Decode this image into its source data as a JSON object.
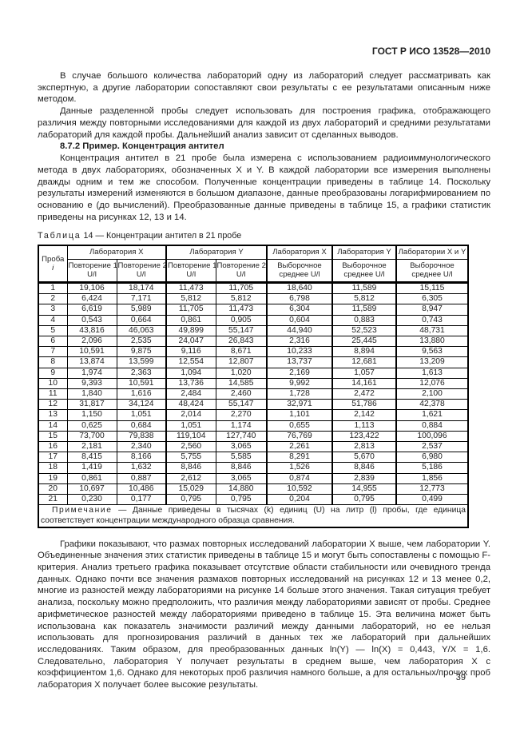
{
  "doc_header": {
    "standard_number": "ГОСТ Р ИСО 13528—2010"
  },
  "body": {
    "para1": "В случае большого количества лабораторий одну из лабораторий следует рассматривать как экспертную, а другие лаборатории сопоставляют свои результаты с ее результатами описанным ниже методом.",
    "para2": "Данные разделенной пробы следует использовать для построения графика, отображающего различия между повторными исследованиями для каждой из двух лабораторий и средними результатами лабораторий для каждой пробы. Дальнейший анализ зависит от сделанных выводов.",
    "section_heading": "8.7.2 Пример. Концентрация антител",
    "para3": "Концентрация антител в 21 пробе была измерена с использованием радиоиммунологического метода в двух лабораториях, обозначенных X и Y. В каждой лаборатории все измерения выполнены дважды одним и тем же способом. Полученные концентрации приведены в таблице 14. Поскольку результаты измерений изменяются в большом диапазоне, данные преобразованы логарифмированием по основанию e (до вычислений). Преобразованные данные приведены в таблице 15, а графики статистик приведены на рисунках 12, 13 и 14.",
    "para4": "Графики показывают, что размах повторных исследований лаборатории X выше, чем лаборатории Y. Объединенные значения этих статистик приведены в таблице 15 и могут быть сопоставлены с помощью F-критерия. Анализ третьего графика показывает отсутствие области стабильности или очевидного тренда данных. Однако почти все значения размахов повторных исследований на рисунках 12 и 13 менее 0,2, многие из разностей между лабораториями на рисунке 14 больше этого значения. Такая ситуация требует анализа, поскольку можно предположить, что различия между лабораториями зависят от пробы. Среднее арифметическое разностей между лабораториями приведено в таблице 15. Эта величина может быть использована как показатель значимости различий между данными лабораторий, но ее нельзя использовать для прогнозирования различий в данных тех же лабораторий при дальнейших исследованиях. Таким образом, для преобразованных данных ln(Y) — ln(X) = 0,443, Y/X = 1,6. Следовательно, лаборатория Y получает результаты в среднем выше, чем лаборатория X с коэффициентом 1,6. Однако для некоторых проб различия намного больше, а для остальных/прочих проб лаборатория X получает более высокие результаты."
  },
  "table": {
    "caption_word": "Таблица",
    "caption_rest": "14 — Концентрации антител в 21 пробе",
    "head": {
      "sample_label": "Проба",
      "sample_index": "i",
      "group_x": "Лаборатория X",
      "group_y": "Лаборатория Y",
      "mean_x": "Лаборатория X",
      "mean_y": "Лаборатория Y",
      "mean_xy": "Лаборатории X и Y",
      "rep1": "Повторение 1",
      "rep2": "Повторение 2",
      "unit": "U/l",
      "sample_mean_1": "Выборочное",
      "sample_mean_2": "среднее U/l"
    },
    "rows": [
      [
        "1",
        "19,106",
        "18,174",
        "11,473",
        "11,705",
        "18,640",
        "11,589",
        "15,115"
      ],
      [
        "2",
        "6,424",
        "7,171",
        "5,812",
        "5,812",
        "6,798",
        "5,812",
        "6,305"
      ],
      [
        "3",
        "6,619",
        "5,989",
        "11,705",
        "11,473",
        "6,304",
        "11,589",
        "8,947"
      ],
      [
        "4",
        "0,543",
        "0,664",
        "0,861",
        "0,905",
        "0,604",
        "0,883",
        "0,743"
      ],
      [
        "5",
        "43,816",
        "46,063",
        "49,899",
        "55,147",
        "44,940",
        "52,523",
        "48,731"
      ],
      [
        "6",
        "2,096",
        "2,535",
        "24,047",
        "26,843",
        "2,316",
        "25,445",
        "13,880"
      ],
      [
        "7",
        "10,591",
        "9,875",
        "9,116",
        "8,671",
        "10,233",
        "8,894",
        "9,563"
      ],
      [
        "8",
        "13,874",
        "13,599",
        "12,554",
        "12,807",
        "13,737",
        "12,681",
        "13,209"
      ],
      [
        "9",
        "1,974",
        "2,363",
        "1,094",
        "1,020",
        "2,169",
        "1,057",
        "1,613"
      ],
      [
        "10",
        "9,393",
        "10,591",
        "13,736",
        "14,585",
        "9,992",
        "14,161",
        "12,076"
      ],
      [
        "11",
        "1,840",
        "1,616",
        "2,484",
        "2,460",
        "1,728",
        "2,472",
        "2,100"
      ],
      [
        "12",
        "31,817",
        "34,124",
        "48,424",
        "55,147",
        "32,971",
        "51,786",
        "42,378"
      ],
      [
        "13",
        "1,150",
        "1,051",
        "2,014",
        "2,270",
        "1,101",
        "2,142",
        "1,621"
      ],
      [
        "14",
        "0,625",
        "0,684",
        "1,051",
        "1,174",
        "0,655",
        "1,113",
        "0,884"
      ],
      [
        "15",
        "73,700",
        "79,838",
        "119,104",
        "127,740",
        "76,769",
        "123,422",
        "100,096"
      ],
      [
        "16",
        "2,181",
        "2,340",
        "2,560",
        "3,065",
        "2,261",
        "2,813",
        "2,537"
      ],
      [
        "17",
        "8,415",
        "8,166",
        "5,755",
        "5,585",
        "8,291",
        "5,670",
        "6,980"
      ],
      [
        "18",
        "1,419",
        "1,632",
        "8,846",
        "8,846",
        "1,526",
        "8,846",
        "5,186"
      ],
      [
        "19",
        "0,861",
        "0,887",
        "2,612",
        "3,065",
        "0,874",
        "2,839",
        "1,856"
      ],
      [
        "20",
        "10,697",
        "10,486",
        "15,029",
        "14,880",
        "10,592",
        "14,955",
        "12,773"
      ],
      [
        "21",
        "0,230",
        "0,177",
        "0,795",
        "0,795",
        "0,204",
        "0,795",
        "0,499"
      ]
    ],
    "note_word": "Примечание",
    "note_text": "— Данные приведены в тысячах (k) единиц (U) на литр (l) пробы, где единица соответствует концентрации международного образца сравнения."
  },
  "footer": {
    "page_number": "39"
  }
}
